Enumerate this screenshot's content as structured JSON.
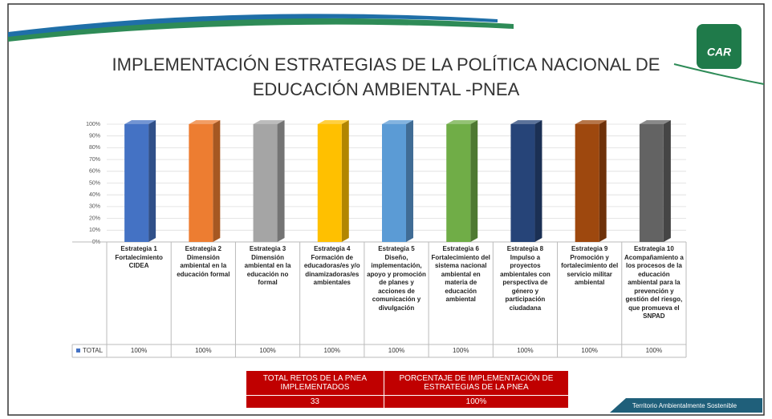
{
  "chart_data": {
    "type": "bar",
    "title": "IMPLEMENTACIÓN ESTRATEGIAS DE LA POLÍTICA NACIONAL DE",
    "title_line2": "EDUCACIÓN AMBIENTAL -PNEA",
    "categories": [
      "Estrategia 1 Fortalecimiento CIDEA",
      "Estrategia 2 Dimensión ambiental en la educación formal",
      "Estrategia 3 Dimensión ambiental en la educación no formal",
      "Estrategia 4 Formación de educadoras/es y/o dinamizadoras/es ambientales",
      "Estrategia 5 Diseño, implementación, apoyo y promoción de planes y acciones de comunicación y divulgación",
      "Estrategia 6 Fortalecimiento del sistema nacional ambiental en materia de educación ambiental",
      "Estrategia 8 Impulso a proyectos ambientales con perspectiva de género y participación ciudadana",
      "Estrategia 9 Promoción y fortalecimiento del servicio militar ambiental",
      "Estrategia 10 Acompañamiento a los procesos de la educación ambiental para la prevención y gestión del riesgo, que promueva el SNPAD"
    ],
    "series": [
      {
        "name": "TOTAL",
        "color": "#4472c4",
        "values": [
          100,
          100,
          100,
          100,
          100,
          100,
          100,
          100,
          100
        ],
        "value_labels": [
          "100%",
          "100%",
          "100%",
          "100%",
          "100%",
          "100%",
          "100%",
          "100%",
          "100%"
        ]
      }
    ],
    "bar_colors": [
      "#4472c4",
      "#ed7d31",
      "#a5a5a5",
      "#ffc000",
      "#5b9bd5",
      "#70ad47",
      "#264478",
      "#9e480e",
      "#636363"
    ],
    "ylim": [
      0,
      100
    ],
    "yticks": [
      {
        "value": 0,
        "label": "0%"
      },
      {
        "value": 10,
        "label": "10%"
      },
      {
        "value": 20,
        "label": "20%"
      },
      {
        "value": 30,
        "label": "30%"
      },
      {
        "value": 40,
        "label": "40%"
      },
      {
        "value": 50,
        "label": "50%"
      },
      {
        "value": 60,
        "label": "60%"
      },
      {
        "value": 70,
        "label": "70%"
      },
      {
        "value": 80,
        "label": "80%"
      },
      {
        "value": 90,
        "label": "90%"
      },
      {
        "value": 100,
        "label": "100%"
      }
    ],
    "grid": true
  },
  "summary": {
    "headers": [
      "TOTAL RETOS DE LA PNEA IMPLEMENTADOS",
      "PORCENTAJE DE IMPLEMENTACIÓN DE ESTRATEGIAS DE LA PNEA"
    ],
    "values": [
      "33",
      "100%"
    ]
  },
  "logo": "CAR",
  "footer": "Territorio Ambientalmente Sostenible"
}
